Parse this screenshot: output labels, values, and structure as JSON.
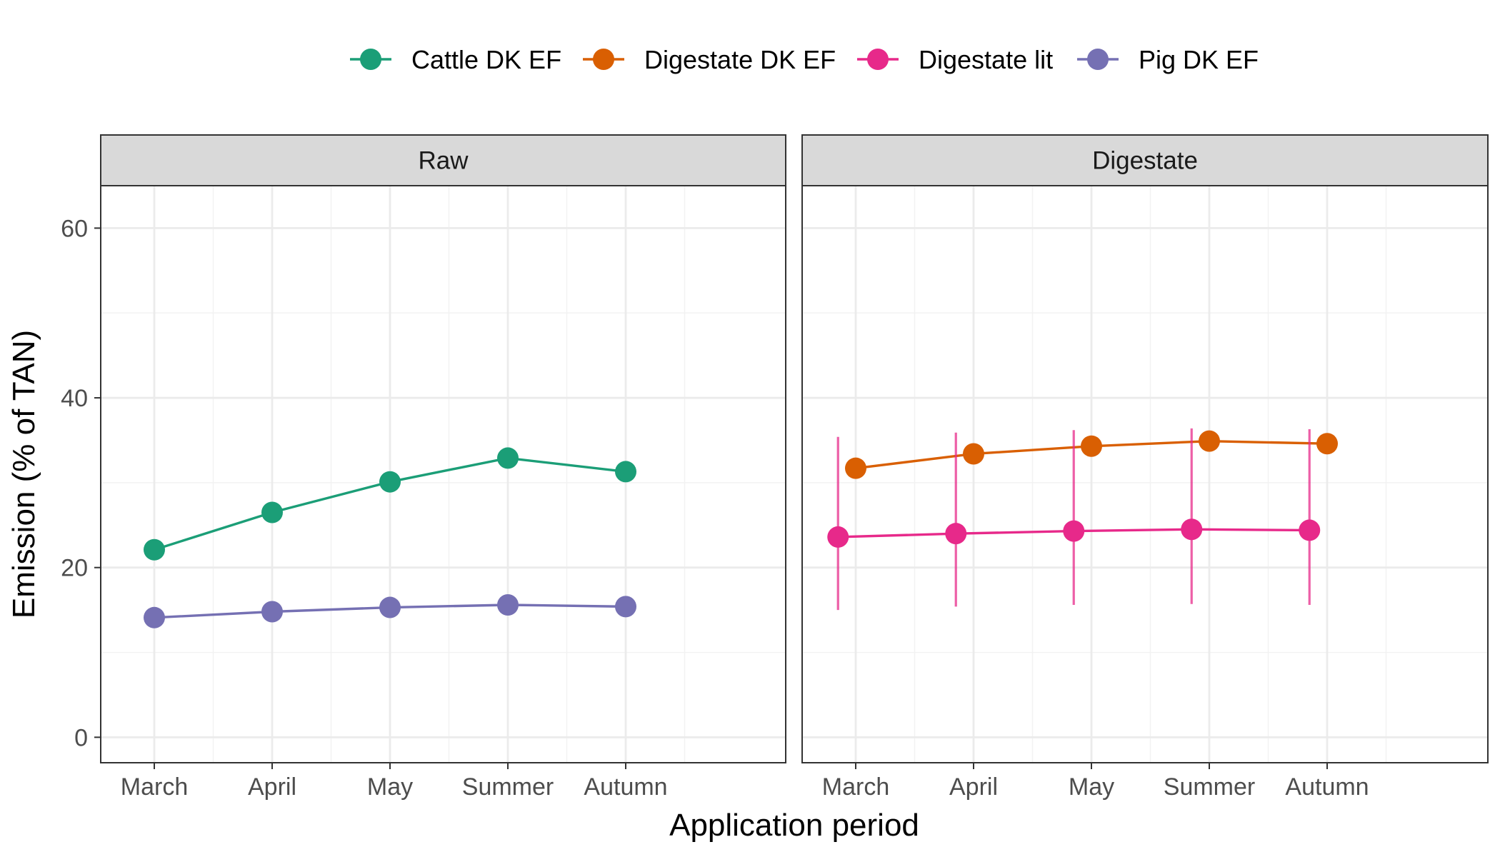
{
  "chart_data": {
    "type": "line",
    "xlabel": "Application period",
    "ylabel": "Emission (% of TAN)",
    "categories": [
      "March",
      "April",
      "May",
      "Summer",
      "Autumn"
    ],
    "y_ticks": [
      0,
      20,
      40,
      60
    ],
    "ylim": [
      -3,
      65
    ],
    "grid": true,
    "legend_position": "top",
    "legend": [
      {
        "name": "Cattle DK EF",
        "color": "#1b9e77"
      },
      {
        "name": "Digestate DK EF",
        "color": "#d95f02"
      },
      {
        "name": "Digestate lit",
        "color": "#e7298a"
      },
      {
        "name": "Pig DK EF",
        "color": "#7570b3"
      }
    ],
    "panels": [
      {
        "title": "Raw",
        "series": [
          {
            "name": "Cattle DK EF",
            "color": "#1b9e77",
            "dodge": 0,
            "values": [
              22.1,
              26.5,
              30.1,
              32.9,
              31.3
            ]
          },
          {
            "name": "Pig DK EF",
            "color": "#7570b3",
            "dodge": 0,
            "values": [
              14.1,
              14.8,
              15.3,
              15.6,
              15.4
            ]
          }
        ]
      },
      {
        "title": "Digestate",
        "series": [
          {
            "name": "Digestate DK EF",
            "color": "#d95f02",
            "dodge": 0,
            "values": [
              31.7,
              33.4,
              34.3,
              34.9,
              34.6
            ]
          },
          {
            "name": "Digestate lit",
            "color": "#e7298a",
            "dodge": -0.15,
            "values": [
              23.6,
              24.0,
              24.3,
              24.5,
              24.4
            ],
            "error_low": [
              15.0,
              15.4,
              15.6,
              15.7,
              15.6
            ],
            "error_high": [
              35.4,
              35.9,
              36.2,
              36.4,
              36.3
            ]
          }
        ]
      }
    ]
  }
}
